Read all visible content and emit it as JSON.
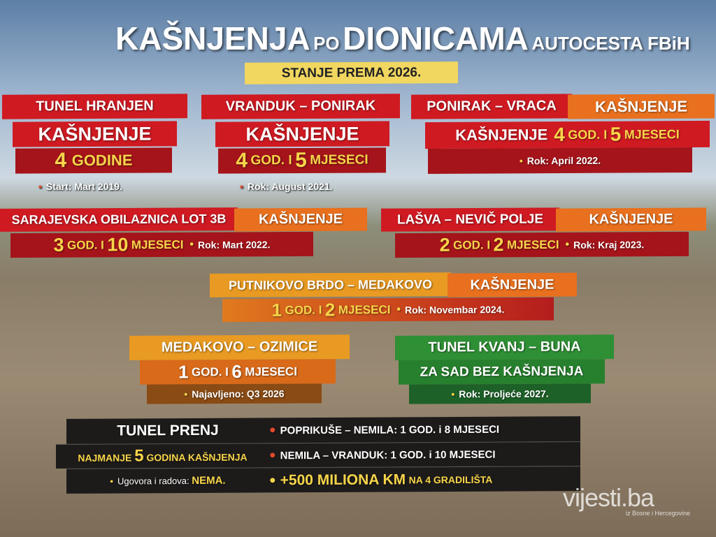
{
  "title": {
    "word1": "KAŠNJENJA",
    "word2": "PO",
    "word3": "DIONICAMA",
    "word4": "AUTOCESTA FBiH"
  },
  "subtitle": "STANJE PREMA 2026.",
  "sections": [
    {
      "name": "TUNEL HRANJEN",
      "label": "KAŠNJENJE",
      "delay_num": "4",
      "delay_unit": "GODINE",
      "note": "Start: Mart 2019."
    },
    {
      "name": "VRANDUK – PONIRAK",
      "label": "KAŠNJENJE",
      "y": "4",
      "y_unit": "GOD. I",
      "m": "5",
      "m_unit": "MJESECI",
      "note": "Rok: August 2021."
    },
    {
      "name": "PONIRAK – VRACA",
      "label": "KAŠNJENJE",
      "label2": "KAŠNJENJE",
      "y": "4",
      "y_unit": "GOD. I",
      "m": "5",
      "m_unit": "MJESECI",
      "note": "Rok: April 2022."
    },
    {
      "name": "SARAJEVSKA OBILAZNICA LOT 3B",
      "label": "KAŠNJENJE",
      "y": "3",
      "y_unit": "GOD. I",
      "m": "10",
      "m_unit": "MJESECI",
      "note": "Rok: Mart 2022."
    },
    {
      "name": "LAŠVA – NEVIČ POLJE",
      "label": "KAŠNJENJE",
      "y": "2",
      "y_unit": "GOD. I",
      "m": "2",
      "m_unit": "MJESECI",
      "note": "Rok: Kraj 2023."
    },
    {
      "name": "PUTNIKOVO BRDO – MEDAKOVO",
      "label": "KAŠNJENJE",
      "y": "1",
      "y_unit": "GOD. I",
      "m": "2",
      "m_unit": "MJESECI",
      "note": "Rok: Novembar 2024."
    },
    {
      "name": "MEDAKOVO – OZIMICE",
      "y": "1",
      "y_unit": "GOD. I",
      "m": "6",
      "m_unit": "MJESECI",
      "note": "Najavljeno: Q3 2026"
    },
    {
      "name": "TUNEL KVANJ – BUNA",
      "status": "ZA SAD BEZ KAŠNJENJA",
      "note": "Rok: Proljeće 2027."
    }
  ],
  "prenj": {
    "name": "TUNEL PRENJ",
    "delay_pre": "NAJMANJE",
    "delay_num": "5",
    "delay_post": "GODINA KAŠNJENJA",
    "contracts_label": "Ugovora i radova:",
    "contracts_value": "NEMA.",
    "item1": "POPRIKUŠE – NEMILA: 1 GOD. i 8 MJESECI",
    "item2": "NEMILA – VRANDUK: 1 GOD. i 10 MJESECI",
    "cost": "+500 MILIONA KM",
    "cost_post": "NA 4 GRADILIŠTA"
  },
  "watermark": {
    "logo": "vijesti.ba",
    "tagline": "iz Bosne i Hercegovine"
  },
  "colors": {
    "red": "#cf1a22",
    "orange": "#e8701e",
    "green": "#2f8f35",
    "yellow": "#f7d54a",
    "black": "#1d1b1a"
  }
}
